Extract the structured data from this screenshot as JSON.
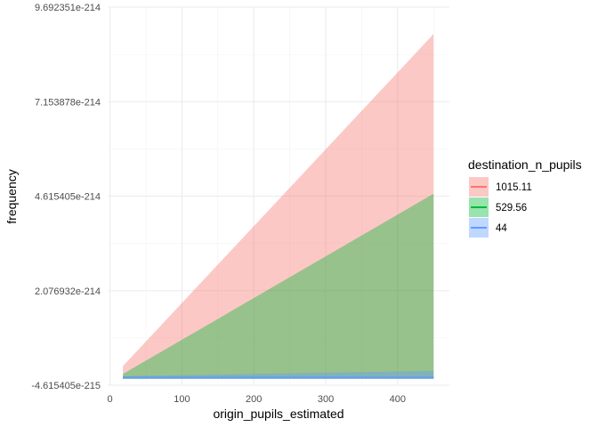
{
  "chart_data": {
    "type": "area",
    "xlabel": "origin_pupils_estimated",
    "ylabel": "frequency",
    "xlim": [
      -2,
      472
    ],
    "ylim": [
      -4.615405e-215,
      9.692351e-214
    ],
    "x_ticks": [
      0,
      100,
      200,
      300,
      400
    ],
    "x_tick_labels": [
      "0",
      "100",
      "200",
      "300",
      "400"
    ],
    "y_ticks": [
      -4.615405e-215,
      2.076932e-214,
      4.615405e-214,
      7.153878e-214,
      9.692351e-214
    ],
    "y_tick_labels": [
      "-4.615405e-215",
      "2.076932e-214",
      "4.615405e-214",
      "7.153878e-214",
      "9.692351e-214"
    ],
    "grid": true,
    "legend_title": "destination_n_pupils",
    "legend_position": "right",
    "series": [
      {
        "name": "1015.11",
        "color": "#F8766D",
        "x": [
          18,
          450
        ],
        "lower": [
          -2.6e-215,
          -2.6e-215
        ],
        "upper": [
          5.3e-216,
          8.97e-214
        ],
        "line": [
          -2.6e-215,
          -2.6e-215
        ]
      },
      {
        "name": "529.56",
        "color": "#00BA38",
        "x": [
          18,
          450
        ],
        "lower": [
          -2.6e-215,
          -2.6e-215
        ],
        "upper": [
          -1.6e-215,
          4.68e-214
        ],
        "line": [
          -2.6e-215,
          -2.6e-215
        ]
      },
      {
        "name": "44",
        "color": "#619CFF",
        "x": [
          18,
          450
        ],
        "lower": [
          -2.6e-215,
          -2.6e-215
        ],
        "upper": [
          -2.2e-215,
          -7.5e-216
        ],
        "line": [
          -2.6e-215,
          -2.6e-215
        ]
      }
    ]
  }
}
